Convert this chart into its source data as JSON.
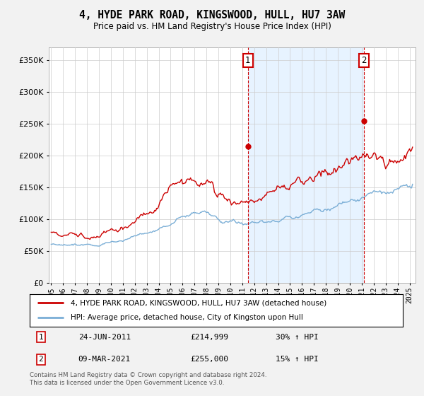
{
  "title": "4, HYDE PARK ROAD, KINGSWOOD, HULL, HU7 3AW",
  "subtitle": "Price paid vs. HM Land Registry's House Price Index (HPI)",
  "legend_line1": "4, HYDE PARK ROAD, KINGSWOOD, HULL, HU7 3AW (detached house)",
  "legend_line2": "HPI: Average price, detached house, City of Kingston upon Hull",
  "annotation1_label": "1",
  "annotation1_date": "24-JUN-2011",
  "annotation1_price": "£214,999",
  "annotation1_hpi": "30% ↑ HPI",
  "annotation2_label": "2",
  "annotation2_date": "09-MAR-2021",
  "annotation2_price": "£255,000",
  "annotation2_hpi": "15% ↑ HPI",
  "footer": "Contains HM Land Registry data © Crown copyright and database right 2024.\nThis data is licensed under the Open Government Licence v3.0.",
  "sold_color": "#cc0000",
  "hpi_color": "#7aaed6",
  "shade_color": "#ddeeff",
  "annotation_vline_color": "#cc0000",
  "point1_x": 2011.47,
  "point1_y": 214999,
  "point2_x": 2021.18,
  "point2_y": 255000,
  "ylim": [
    0,
    370000
  ],
  "xlim_start": 1994.8,
  "xlim_end": 2025.5,
  "background_color": "#f2f2f2",
  "plot_bg_color": "#ffffff"
}
